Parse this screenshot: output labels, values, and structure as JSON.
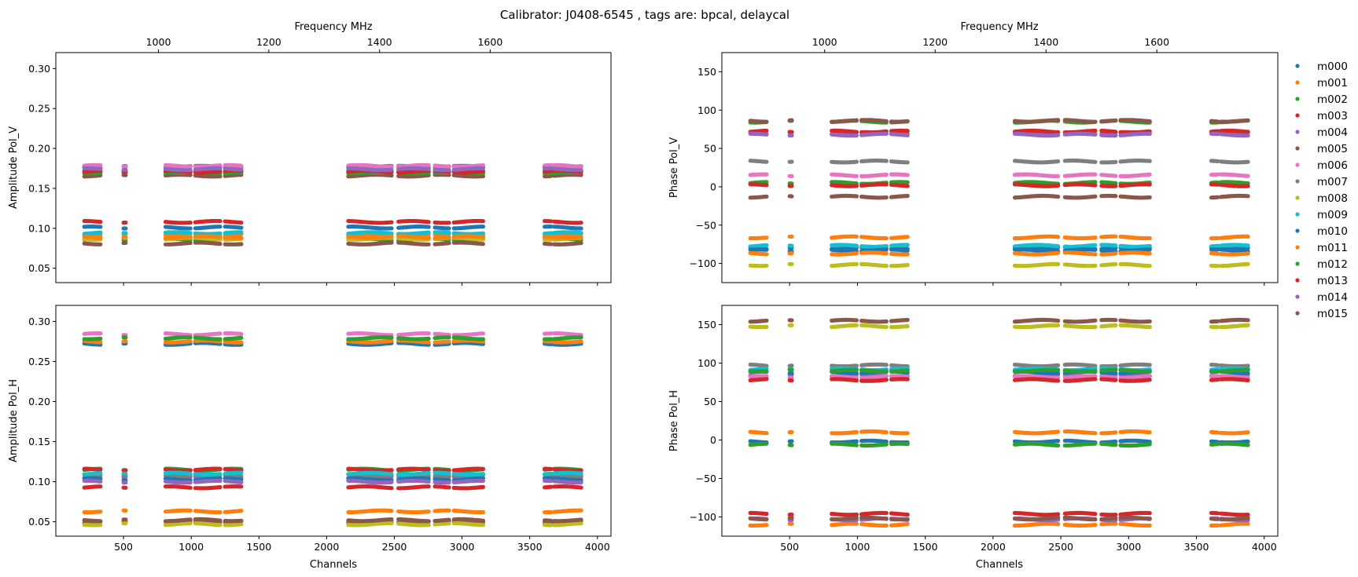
{
  "suptitle": "Calibrator: J0408-6545 , tags are: bpcal, delaycal",
  "colors": {
    "m000": "#1f77b4",
    "m001": "#ff7f0e",
    "m002": "#2ca02c",
    "m003": "#d62728",
    "m004": "#9467bd",
    "m005": "#8c564b",
    "m006": "#e377c2",
    "m007": "#7f7f7f",
    "m008": "#bcbd22",
    "m009": "#17becf",
    "m010": "#1f77b4",
    "m011": "#ff7f0e",
    "m012": "#2ca02c",
    "m013": "#d62728",
    "m014": "#9467bd",
    "m015": "#8c564b"
  },
  "legend": {
    "placement": "outside right, upper",
    "entries": [
      "m000",
      "m001",
      "m002",
      "m003",
      "m004",
      "m005",
      "m006",
      "m007",
      "m008",
      "m009",
      "m010",
      "m011",
      "m012",
      "m013",
      "m014",
      "m015"
    ]
  },
  "chart_data": [
    {
      "type": "scatter",
      "panel": "top-left",
      "ylabel": "Amplitude Pol_V",
      "xlabel_top": "Frequency MHz",
      "xlim": [
        0,
        4100
      ],
      "ylim": [
        0.032,
        0.32
      ],
      "yticks": [
        "0.05",
        "0.10",
        "0.15",
        "0.20",
        "0.25",
        "0.30"
      ],
      "top_xticks": [
        "1000",
        "1200",
        "1400",
        "1600"
      ],
      "top_xtick_channels": [
        758,
        1573,
        2391,
        3208
      ],
      "series": [
        {
          "name": "m000",
          "level": 0.177
        },
        {
          "name": "m001",
          "level": 0.092
        },
        {
          "name": "m002",
          "level": 0.086
        },
        {
          "name": "m003",
          "level": 0.108
        },
        {
          "name": "m004",
          "level": 0.177
        },
        {
          "name": "m005",
          "level": 0.166
        },
        {
          "name": "m006",
          "level": 0.178
        },
        {
          "name": "m007",
          "level": 0.171
        },
        {
          "name": "m008",
          "level": 0.087
        },
        {
          "name": "m009",
          "level": 0.094
        },
        {
          "name": "m010",
          "level": 0.101
        },
        {
          "name": "m011",
          "level": 0.089
        },
        {
          "name": "m012",
          "level": 0.17
        },
        {
          "name": "m013",
          "level": 0.171
        },
        {
          "name": "m014",
          "level": 0.174
        },
        {
          "name": "m015",
          "level": 0.081
        }
      ]
    },
    {
      "type": "scatter",
      "panel": "top-right",
      "ylabel": "Phase Pol_V",
      "xlabel_top": "Frequency MHz",
      "xlim": [
        0,
        4100
      ],
      "ylim": [
        -125,
        175
      ],
      "yticks": [
        "150",
        "100",
        "50",
        "0",
        "−50",
        "−100"
      ],
      "top_xticks": [
        "1000",
        "1200",
        "1400",
        "1600"
      ],
      "top_xtick_channels": [
        758,
        1573,
        2391,
        3208
      ],
      "series": [
        {
          "name": "m000",
          "level": -80
        },
        {
          "name": "m001",
          "level": -66
        },
        {
          "name": "m002",
          "level": 5
        },
        {
          "name": "m003",
          "level": 2
        },
        {
          "name": "m004",
          "level": 70
        },
        {
          "name": "m005",
          "level": -13
        },
        {
          "name": "m006",
          "level": 15
        },
        {
          "name": "m007",
          "level": 33
        },
        {
          "name": "m008",
          "level": -102
        },
        {
          "name": "m009",
          "level": -77
        },
        {
          "name": "m010",
          "level": -83
        },
        {
          "name": "m011",
          "level": -87
        },
        {
          "name": "m012",
          "level": 85
        },
        {
          "name": "m013",
          "level": 72
        },
        {
          "name": "m014",
          "level": 68
        },
        {
          "name": "m015",
          "level": 86
        }
      ]
    },
    {
      "type": "scatter",
      "panel": "bottom-left",
      "ylabel": "Amplitude Pol_H",
      "xlabel": "Channels",
      "xlim": [
        0,
        4100
      ],
      "ylim": [
        0.032,
        0.32
      ],
      "yticks": [
        "0.05",
        "0.10",
        "0.15",
        "0.20",
        "0.25",
        "0.30"
      ],
      "xticks": [
        "500",
        "1000",
        "1500",
        "2000",
        "2500",
        "3000",
        "3500",
        "4000"
      ],
      "series": [
        {
          "name": "m000",
          "level": 0.272
        },
        {
          "name": "m001",
          "level": 0.063
        },
        {
          "name": "m002",
          "level": 0.115
        },
        {
          "name": "m003",
          "level": 0.115
        },
        {
          "name": "m004",
          "level": 0.105
        },
        {
          "name": "m005",
          "level": 0.05
        },
        {
          "name": "m006",
          "level": 0.284
        },
        {
          "name": "m007",
          "level": 0.108
        },
        {
          "name": "m008",
          "level": 0.047
        },
        {
          "name": "m009",
          "level": 0.11
        },
        {
          "name": "m010",
          "level": 0.103
        },
        {
          "name": "m011",
          "level": 0.275
        },
        {
          "name": "m012",
          "level": 0.279
        },
        {
          "name": "m013",
          "level": 0.093
        },
        {
          "name": "m014",
          "level": 0.1
        },
        {
          "name": "m015",
          "level": 0.052
        }
      ]
    },
    {
      "type": "scatter",
      "panel": "bottom-right",
      "ylabel": "Phase Pol_H",
      "xlabel": "Channels",
      "xlim": [
        0,
        4100
      ],
      "ylim": [
        -125,
        175
      ],
      "yticks": [
        "150",
        "100",
        "50",
        "0",
        "−50",
        "−100"
      ],
      "xticks": [
        "500",
        "1000",
        "1500",
        "2000",
        "2500",
        "3000",
        "3500",
        "4000"
      ],
      "series": [
        {
          "name": "m000",
          "level": -2
        },
        {
          "name": "m001",
          "level": -110
        },
        {
          "name": "m002",
          "level": -6
        },
        {
          "name": "m003",
          "level": -96
        },
        {
          "name": "m004",
          "level": 84
        },
        {
          "name": "m005",
          "level": 155
        },
        {
          "name": "m006",
          "level": 82
        },
        {
          "name": "m007",
          "level": 97
        },
        {
          "name": "m008",
          "level": 148
        },
        {
          "name": "m009",
          "level": 92
        },
        {
          "name": "m010",
          "level": 88
        },
        {
          "name": "m011",
          "level": 10
        },
        {
          "name": "m012",
          "level": 90
        },
        {
          "name": "m013",
          "level": 78
        },
        {
          "name": "m014",
          "level": -103
        },
        {
          "name": "m015",
          "level": -102
        }
      ]
    }
  ],
  "channel_segments": [
    [
      210,
      330
    ],
    [
      500,
      520
    ],
    [
      810,
      1000
    ],
    [
      1030,
      1220
    ],
    [
      1250,
      1370
    ],
    [
      2160,
      2480
    ],
    [
      2530,
      2760
    ],
    [
      2800,
      2910
    ],
    [
      2940,
      3160
    ],
    [
      3610,
      3660
    ],
    [
      3680,
      3880
    ]
  ]
}
